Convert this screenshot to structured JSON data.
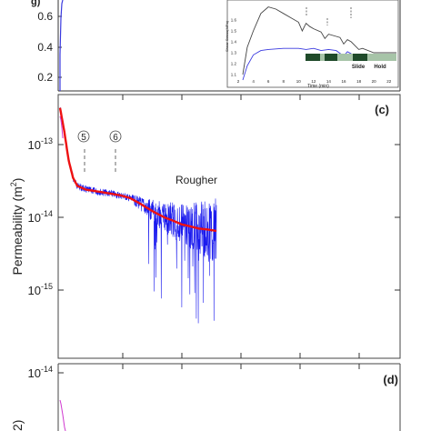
{
  "chart_data": [
    {
      "panel": "top (b, cropped)",
      "type": "line",
      "y_ticks": [
        "0.6",
        "0.4",
        "0.2"
      ],
      "axis_partial_label": "g)",
      "inset": {
        "type": "line",
        "xlabel": "Time (min)",
        "ylabel": "Shear Stress(MPa)",
        "x_ticks": [
          "2",
          "4",
          "6",
          "8",
          "10",
          "12",
          "14",
          "16",
          "18",
          "20",
          "22"
        ],
        "y_ticks": [
          "1.6",
          "1.5",
          "1.4",
          "1.3",
          "1.2",
          "1.1"
        ],
        "xlim": [
          2,
          23
        ],
        "ylim": [
          1.05,
          1.75
        ],
        "phase_labels": [
          "Slide",
          "Hold"
        ],
        "series": [
          {
            "color": "#444444",
            "x": [
              2.6,
              3.2,
              4.0,
              5.0,
              6.0,
              7.0,
              8.0,
              9.0,
              10.0,
              10.5,
              11.0,
              11.5,
              12.0,
              13.0,
              13.5,
              14.0,
              15.0,
              15.5,
              16.0,
              16.5,
              17.0,
              18.0,
              18.5,
              20.0,
              22.0,
              23.0
            ],
            "y": [
              1.1,
              1.35,
              1.5,
              1.66,
              1.72,
              1.7,
              1.66,
              1.62,
              1.58,
              1.5,
              1.57,
              1.54,
              1.52,
              1.49,
              1.43,
              1.47,
              1.45,
              1.44,
              1.38,
              1.42,
              1.4,
              1.33,
              1.34,
              1.3,
              1.3,
              1.3
            ]
          },
          {
            "color": "#3a3adf",
            "x": [
              2.6,
              3.2,
              4.0,
              5.0,
              6.0,
              8.0,
              10.0,
              11.0,
              12.0,
              13.0,
              14.0,
              15.0,
              16.0,
              16.5,
              17.0,
              18.0,
              20.0,
              22.0,
              23.0
            ],
            "y": [
              1.05,
              1.18,
              1.28,
              1.32,
              1.33,
              1.34,
              1.34,
              1.33,
              1.34,
              1.32,
              1.33,
              1.32,
              1.27,
              1.31,
              1.29,
              1.26,
              1.26,
              1.25,
              1.25
            ]
          }
        ]
      }
    },
    {
      "panel": "(c)",
      "type": "line",
      "panel_label": "(c)",
      "ylabel": "Permeability (m",
      "ylabel_sup": "2",
      "ylabel_close": ")",
      "y_scale": "log",
      "y_ticks": [
        {
          "base": "10",
          "exp": "-13",
          "value": 1e-13
        },
        {
          "base": "10",
          "exp": "-14",
          "value": 1e-14
        },
        {
          "base": "10",
          "exp": "-15",
          "value": 1e-15
        }
      ],
      "annotation_text": "Rougher",
      "markers": [
        "5",
        "6"
      ],
      "series": [
        {
          "name": "",
          "color": "#1a1aee",
          "style": "noisy raw data",
          "x": [
            0,
            0.5,
            1,
            1.5,
            2,
            3,
            4,
            5,
            6,
            7,
            8,
            9,
            10,
            11,
            12,
            13,
            14,
            15,
            16,
            17,
            18
          ],
          "y": [
            3.2e-13,
            1.5e-13,
            6e-14,
            3.5e-14,
            2.7e-14,
            2.4e-14,
            2.3e-14,
            2.2e-14,
            2.1e-14,
            2e-14,
            1.85e-14,
            1.6e-14,
            1.35e-14,
            1.15e-14,
            1e-14,
            9e-15,
            8e-15,
            7.5e-15,
            7e-15,
            6.8e-15,
            6.5e-15
          ]
        },
        {
          "name": "",
          "color": "#ee1111",
          "style": "smoothed",
          "x": [
            0,
            0.5,
            1,
            1.5,
            2,
            3,
            4,
            5,
            6,
            7,
            8,
            9,
            10,
            11,
            12,
            13,
            14,
            15,
            16,
            17,
            18
          ],
          "y": [
            3.2e-13,
            1.5e-13,
            6e-14,
            3.5e-14,
            2.7e-14,
            2.4e-14,
            2.3e-14,
            2.2e-14,
            2.1e-14,
            2e-14,
            1.85e-14,
            1.6e-14,
            1.35e-14,
            1.15e-14,
            1e-14,
            9e-15,
            8e-15,
            7.5e-15,
            7e-15,
            6.8e-15,
            6.5e-15
          ]
        }
      ]
    },
    {
      "panel": "(d)",
      "type": "line",
      "panel_label": "(d)",
      "y_scale": "log",
      "y_ticks": [
        {
          "base": "10",
          "exp": "-14",
          "value": 1e-14
        }
      ],
      "ylabel_partial": "2)"
    }
  ],
  "colors": {
    "raw": "#1a1aee",
    "smooth": "#ee1111",
    "axis": "#333333",
    "inset_dark": "#1f4a2a",
    "inset_light": "#a7c4a8"
  }
}
